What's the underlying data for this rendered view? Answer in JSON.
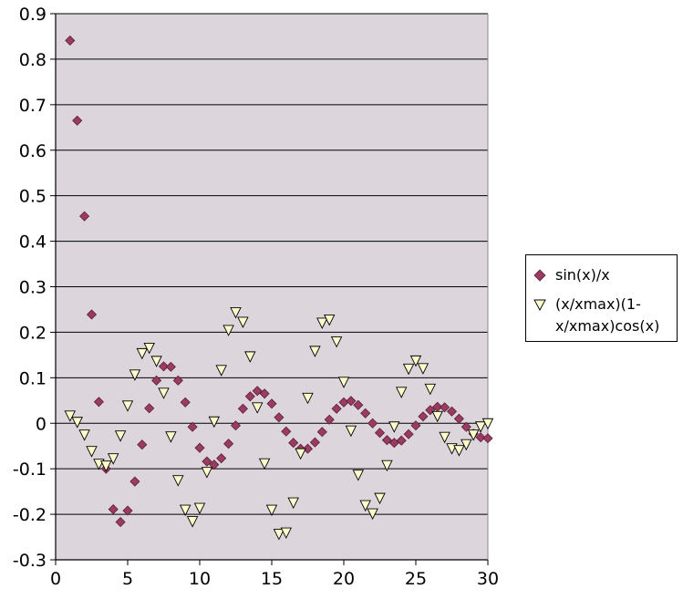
{
  "chart_data": {
    "type": "scatter",
    "xlim": [
      0,
      30
    ],
    "ylim": [
      -0.3,
      0.9
    ],
    "xticks": [
      0,
      5,
      10,
      15,
      20,
      25,
      30
    ],
    "yticks": [
      0.9,
      0.8,
      0.7,
      0.6,
      0.5,
      0.4,
      0.3,
      0.2,
      0.1,
      0,
      -0.1,
      -0.2,
      -0.3
    ],
    "xtick_labels": [
      "0",
      "5",
      "10",
      "15",
      "20",
      "25",
      "30"
    ],
    "ytick_labels": [
      "0.9",
      "0.8",
      "0.7",
      "0.6",
      "0.5",
      "0.4",
      "0.3",
      "0.2",
      "0.1",
      "0",
      "-0.1",
      "-0.2",
      "-0.3"
    ],
    "grid": "horizontal",
    "plot_background": "#dcd6dc",
    "legend_position": "right",
    "series": [
      {
        "name": "sin(x)/x",
        "marker": "diamond",
        "color": "#9b3b62",
        "x": [
          1,
          1.5,
          2,
          2.5,
          3,
          3.5,
          4,
          4.5,
          5,
          5.5,
          6,
          6.5,
          7,
          7.5,
          8,
          8.5,
          9,
          9.5,
          10,
          10.5,
          11,
          11.5,
          12,
          12.5,
          13,
          13.5,
          14,
          14.5,
          15,
          15.5,
          16,
          16.5,
          17,
          17.5,
          18,
          18.5,
          19,
          19.5,
          20,
          20.5,
          21,
          21.5,
          22,
          22.5,
          23,
          23.5,
          24,
          24.5,
          25,
          25.5,
          26,
          26.5,
          27,
          27.5,
          28,
          28.5,
          29,
          29.5,
          30
        ],
        "y": [
          0.841,
          0.665,
          0.455,
          0.239,
          0.047,
          -0.1,
          -0.189,
          -0.217,
          -0.192,
          -0.128,
          -0.047,
          0.033,
          0.094,
          0.125,
          0.124,
          0.094,
          0.046,
          -0.008,
          -0.054,
          -0.084,
          -0.091,
          -0.077,
          -0.045,
          -0.005,
          0.032,
          0.059,
          0.071,
          0.065,
          0.043,
          0.013,
          -0.018,
          -0.043,
          -0.056,
          -0.056,
          -0.042,
          -0.019,
          0.008,
          0.032,
          0.046,
          0.049,
          0.04,
          0.022,
          0.0,
          -0.021,
          -0.037,
          -0.043,
          -0.038,
          -0.024,
          -0.005,
          0.015,
          0.029,
          0.036,
          0.035,
          0.026,
          0.01,
          -0.008,
          -0.023,
          -0.031,
          -0.033
        ]
      },
      {
        "name": "(x/xmax)(1-x/xmax)cos(x)",
        "marker": "triangle-down",
        "color": "#ffffcc",
        "x": [
          1,
          1.5,
          2,
          2.5,
          3,
          3.5,
          4,
          4.5,
          5,
          5.5,
          6,
          6.5,
          7,
          7.5,
          8,
          8.5,
          9,
          9.5,
          10,
          10.5,
          11,
          11.5,
          12,
          12.5,
          13,
          13.5,
          14,
          14.5,
          15,
          15.5,
          16,
          16.5,
          17,
          17.5,
          18,
          18.5,
          19,
          19.5,
          20,
          20.5,
          21,
          21.5,
          22,
          22.5,
          23,
          23.5,
          24,
          24.5,
          25,
          25.5,
          26,
          26.5,
          27,
          27.5,
          28,
          28.5,
          29,
          29.5,
          30
        ],
        "y": [
          0.017,
          0.003,
          -0.025,
          -0.061,
          -0.089,
          -0.093,
          -0.077,
          -0.027,
          0.039,
          0.107,
          0.154,
          0.166,
          0.137,
          0.067,
          -0.029,
          -0.125,
          -0.19,
          -0.215,
          -0.186,
          -0.107,
          0.004,
          0.117,
          0.205,
          0.244,
          0.223,
          0.147,
          0.035,
          -0.088,
          -0.19,
          -0.243,
          -0.24,
          -0.174,
          -0.066,
          0.056,
          0.159,
          0.221,
          0.228,
          0.18,
          0.091,
          -0.016,
          -0.113,
          -0.18,
          -0.198,
          -0.164,
          -0.092,
          -0.007,
          0.069,
          0.12,
          0.138,
          0.121,
          0.076,
          0.016,
          -0.03,
          -0.055,
          -0.059,
          -0.046,
          -0.025,
          -0.007,
          0.0
        ]
      }
    ]
  }
}
